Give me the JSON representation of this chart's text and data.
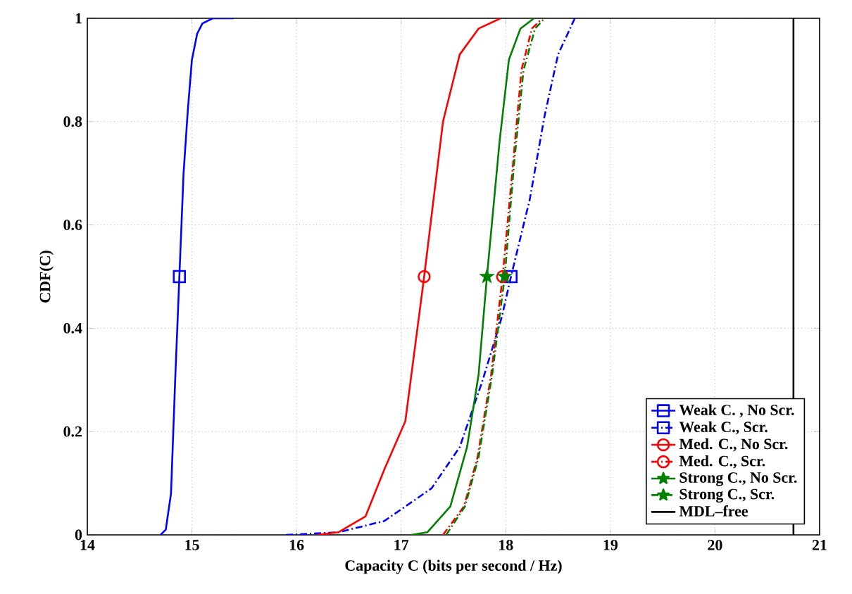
{
  "chart_data": {
    "type": "line",
    "xlabel": "Capacity C (bits per second / Hz)",
    "ylabel": "CDF(C)",
    "xlim": [
      14,
      21
    ],
    "ylim": [
      0,
      1
    ],
    "xticks": [
      14,
      15,
      16,
      17,
      18,
      19,
      20,
      21
    ],
    "yticks": [
      0,
      0.2,
      0.4,
      0.6,
      0.8,
      1
    ],
    "grid": true,
    "legend": "bottom right",
    "series": [
      {
        "name": "Weak C. , No Scr.",
        "color": "#0000ff",
        "line_style": "solid",
        "x": [
          14.7,
          14.75,
          14.8,
          14.84,
          14.88,
          14.92,
          14.96,
          15.0,
          15.05,
          15.1,
          15.2,
          15.4
        ],
        "values": [
          0,
          0.01,
          0.08,
          0.3,
          0.5,
          0.7,
          0.82,
          0.92,
          0.97,
          0.99,
          1.0,
          1.0
        ]
      },
      {
        "name": "Weak C., Scr.",
        "color": "#0000ff",
        "line_style": "dashdot",
        "x": [
          15.9,
          16.4,
          16.84,
          17.29,
          17.56,
          17.78,
          17.96,
          18.05,
          18.23,
          18.37,
          18.5,
          18.66
        ],
        "values": [
          0,
          0.005,
          0.027,
          0.09,
          0.17,
          0.3,
          0.42,
          0.5,
          0.65,
          0.81,
          0.93,
          1.0
        ]
      },
      {
        "name": "Med. C., No Scr.",
        "color": "#ff0000",
        "line_style": "solid",
        "x": [
          16.2,
          16.4,
          16.66,
          16.84,
          17.04,
          17.22,
          17.4,
          17.56,
          17.74,
          17.95
        ],
        "values": [
          0,
          0.005,
          0.036,
          0.127,
          0.22,
          0.5,
          0.8,
          0.93,
          0.98,
          1.0
        ]
      },
      {
        "name": "Med. C., Scr.",
        "color": "#ff0000",
        "line_style": "dashdot",
        "x": [
          17.4,
          17.6,
          17.73,
          17.86,
          17.97,
          18.07,
          18.15,
          18.25,
          18.35
        ],
        "values": [
          0,
          0.055,
          0.15,
          0.31,
          0.5,
          0.72,
          0.9,
          0.98,
          1.0
        ]
      },
      {
        "name": "Strong C., No Scr.",
        "color": "#008000",
        "line_style": "solid",
        "x": [
          17.1,
          17.25,
          17.47,
          17.63,
          17.74,
          17.82,
          17.94,
          18.03,
          18.14,
          18.27
        ],
        "values": [
          0,
          0.005,
          0.055,
          0.17,
          0.31,
          0.5,
          0.76,
          0.92,
          0.98,
          1.0
        ]
      },
      {
        "name": "Strong C., Scr.",
        "color": "#008000",
        "line_style": "dashdot",
        "x": [
          17.43,
          17.61,
          17.74,
          17.87,
          17.99,
          18.08,
          18.17,
          18.28,
          18.37
        ],
        "values": [
          0,
          0.055,
          0.15,
          0.31,
          0.5,
          0.72,
          0.9,
          0.98,
          1.0
        ]
      },
      {
        "name": "MDL–free",
        "color": "#000000",
        "line_style": "solid",
        "x": [
          20.75,
          20.75
        ],
        "values": [
          0,
          1
        ]
      },
      {
        "type": "scatter",
        "color": "#0000ff",
        "marker": "square",
        "x": [
          14.88
        ],
        "values": [
          0.5
        ]
      },
      {
        "type": "scatter",
        "color": "#0000ff",
        "marker": "square",
        "x": [
          18.05
        ],
        "values": [
          0.5
        ]
      },
      {
        "type": "scatter",
        "color": "#ff0000",
        "marker": "circle",
        "x": [
          17.22
        ],
        "values": [
          0.5
        ]
      },
      {
        "type": "scatter",
        "color": "#ff0000",
        "marker": "circle",
        "x": [
          17.97
        ],
        "values": [
          0.5
        ]
      },
      {
        "type": "scatter",
        "color": "#008000",
        "marker": "star",
        "x": [
          17.82
        ],
        "values": [
          0.5
        ]
      },
      {
        "type": "scatter",
        "color": "#008000",
        "marker": "star",
        "x": [
          17.99
        ],
        "values": [
          0.5
        ]
      }
    ]
  }
}
